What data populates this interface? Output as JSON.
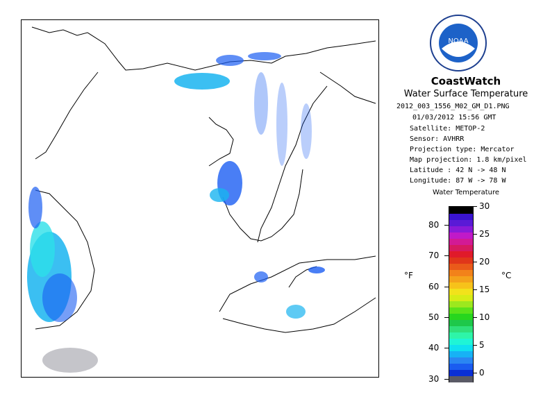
{
  "header": {
    "brand": "CoastWatch",
    "product": "Water Surface Temperature",
    "filename": "2012_003_1556_M02_GM_D1.PNG",
    "datetime": "01/03/2012    15:56 GMT",
    "satellite": "Satellite: METOP-2",
    "sensor": "Sensor: AVHRR",
    "projection_type": "Projection type:  Mercator",
    "map_projection": "Map projection: 1.8 km/pixel",
    "latitude": "Latitude : 42 N -> 48 N",
    "longitude": "Longitude: 87 W -> 78 W"
  },
  "logo": {
    "name": "noaa-logo",
    "text": "NOAA"
  },
  "legend": {
    "title": "Water Temperature",
    "unit_f": "°F",
    "unit_c": "°C",
    "f_ticks": [
      "30",
      "40",
      "50",
      "60",
      "70",
      "80"
    ],
    "c_ticks": [
      "0",
      "5",
      "10",
      "15",
      "20",
      "25",
      "30"
    ],
    "colors": [
      "#5a5a66",
      "#0a2fd6",
      "#1a5cf0",
      "#2a86f2",
      "#17b2f5",
      "#0fe1f0",
      "#1ff5d6",
      "#2ef5a8",
      "#2fe07a",
      "#1ec84a",
      "#27d61e",
      "#5ae21a",
      "#9de81e",
      "#d7ec16",
      "#f2e21b",
      "#f7c21a",
      "#f4a21b",
      "#f2821a",
      "#ea5a1a",
      "#e0361a",
      "#e01a2a",
      "#d61a60",
      "#d21a95",
      "#c01ac8",
      "#8a1ad8",
      "#5a1ad6",
      "#3a14d0",
      "#000000"
    ]
  },
  "map": {
    "region": "Lake Huron",
    "colors": {
      "land": "#ffffff",
      "coast": "#000000",
      "cold": "#1b5ef2",
      "cool": "#19b4f0",
      "cyan": "#2de0e8",
      "ice": "#5a5a66"
    }
  }
}
